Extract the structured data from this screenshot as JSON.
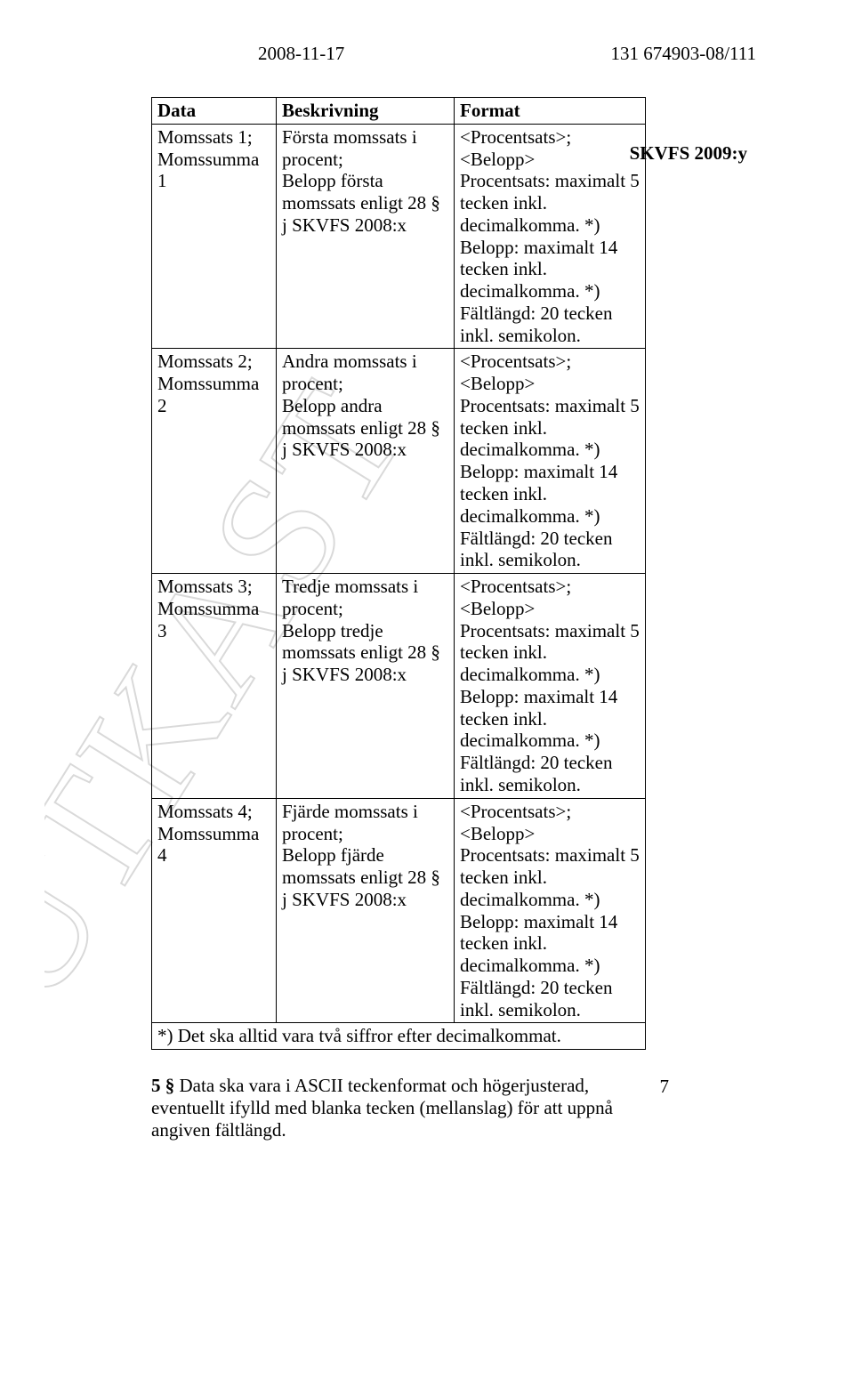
{
  "header": {
    "date": "2008-11-17",
    "ref": "131 674903-08/111"
  },
  "side_label": "SKVFS 2009:y",
  "watermark_text": "UTKAST",
  "table": {
    "headers": [
      "Data",
      "Beskrivning",
      "Format"
    ],
    "rows": [
      {
        "c1": "Momssats 1; Momssumma 1",
        "c2": "Första momssats i procent;\nBelopp första momssats enligt 28 § j SKVFS 2008:x",
        "c3": "<Procentsats>;<Belopp>\nProcentsats: maximalt 5 tecken inkl. decimalkomma. *)\nBelopp: maximalt 14 tecken inkl. decimalkomma. *)\nFältlängd: 20 tecken inkl. semikolon."
      },
      {
        "c1": "Momssats 2; Momssumma 2",
        "c2": "Andra momssats i procent;\nBelopp andra momssats enligt 28 § j SKVFS 2008:x",
        "c3": "<Procentsats>;<Belopp>\nProcentsats: maximalt 5 tecken inkl. decimalkomma. *)\nBelopp: maximalt 14 tecken inkl. decimalkomma. *)\nFältlängd: 20 tecken inkl. semikolon."
      },
      {
        "c1": "Momssats 3; Momssumma 3",
        "c2": "Tredje momssats i procent;\nBelopp tredje momssats enligt 28 § j SKVFS 2008:x",
        "c3": "<Procentsats>;<Belopp>\nProcentsats: maximalt 5 tecken inkl. decimalkomma. *)\nBelopp: maximalt 14 tecken inkl. decimalkomma. *)\nFältlängd: 20 tecken inkl. semikolon."
      },
      {
        "c1": "Momssats 4; Momssumma 4",
        "c2": "Fjärde momssats i procent;\nBelopp fjärde momssats enligt 28 § j SKVFS 2008:x",
        "c3": "<Procentsats>;<Belopp>\nProcentsats: maximalt 5 tecken inkl. decimalkomma. *)\nBelopp: maximalt 14 tecken inkl. decimalkomma. *)\nFältlängd: 20 tecken inkl. semikolon."
      }
    ],
    "footnote_row": "*) Det ska alltid vara två siffror efter decimalkommat."
  },
  "paragraph": {
    "section": "5 §",
    "text": "   Data ska vara i ASCII teckenformat och högerjusterad, eventuellt ifylld med blanka tecken (mellanslag) för att uppnå angiven fältlängd."
  },
  "page_number": "7",
  "colors": {
    "text": "#000000",
    "background": "#ffffff",
    "watermark": "#d9d9d9"
  }
}
